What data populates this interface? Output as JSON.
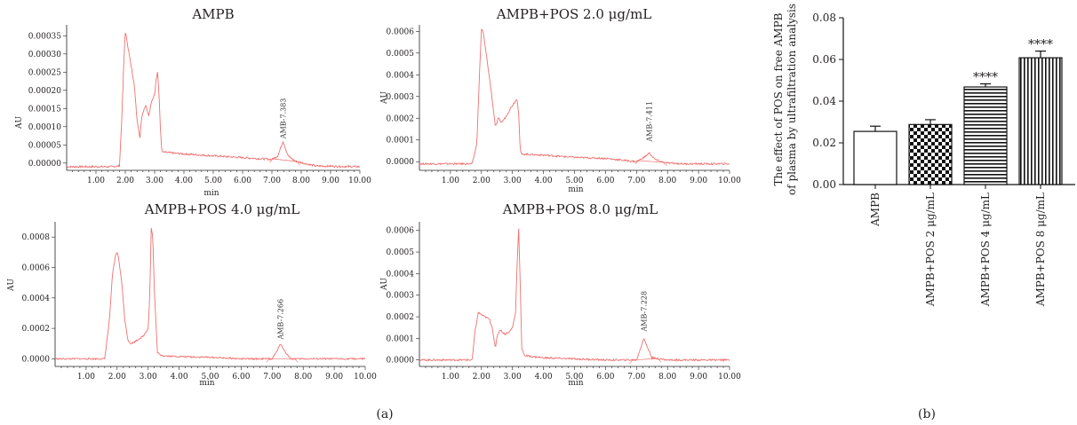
{
  "panel_a_caption": "(a)",
  "panel_b_caption": "(b)",
  "chart_data": [
    {
      "type": "line",
      "title": "AMPB",
      "xlabel": "min",
      "ylabel": "AU",
      "xlim": [
        0,
        10
      ],
      "ylim": [
        -2e-05,
        0.00038
      ],
      "xticks": [
        "1.00",
        "2.00",
        "3.00",
        "4.00",
        "5.00",
        "6.00",
        "7.00",
        "8.00",
        "9.00",
        "10.00"
      ],
      "yticks": [
        "0.00000",
        "0.00005",
        "0.00010",
        "0.00015",
        "0.00020",
        "0.00025",
        "0.00030",
        "0.00035"
      ],
      "ytick_values": [
        0,
        5e-05,
        0.0001,
        0.00015,
        0.0002,
        0.00025,
        0.0003,
        0.00035
      ],
      "peak_label": "AMB-7.383",
      "peak_label_x": 7.383,
      "peak_label_y": 6e-05,
      "baseline_noise": 2.5e-06,
      "series": [
        {
          "x": [
            0,
            1.5,
            1.8,
            1.88,
            1.95,
            2.0,
            2.05,
            2.15,
            2.3,
            2.4,
            2.5,
            2.55,
            2.6,
            2.7,
            2.8,
            2.9,
            3.0,
            3.05,
            3.1,
            3.15,
            3.2,
            3.25,
            3.3,
            4.0,
            5.0,
            6.0,
            7.0,
            7.2,
            7.38,
            7.55,
            7.8,
            8.5,
            10.0
          ],
          "y": [
            -1e-05,
            -1e-05,
            -8e-06,
            0.00012,
            0.00028,
            0.00036,
            0.00034,
            0.00029,
            0.00022,
            0.00012,
            7e-05,
            0.00012,
            0.00014,
            0.00016,
            0.00013,
            0.00017,
            0.00019,
            0.00023,
            0.00025,
            0.00019,
            9e-05,
            3e-05,
            3e-05,
            2.5e-05,
            2e-05,
            1.5e-05,
            1e-05,
            2e-05,
            6e-05,
            2e-05,
            5e-06,
            -8e-06,
            -1e-05
          ]
        }
      ]
    },
    {
      "type": "line",
      "title": "AMPB+POS 2.0 μg/mL",
      "xlabel": "min",
      "ylabel": "AU",
      "xlim": [
        0,
        10
      ],
      "ylim": [
        -4e-05,
        0.00063
      ],
      "xticks": [
        "1.00",
        "2.00",
        "3.00",
        "4.00",
        "5.00",
        "6.00",
        "7.00",
        "8.00",
        "9.00",
        "10.00"
      ],
      "yticks": [
        "0.0000",
        "0.0001",
        "0.0002",
        "0.0003",
        "0.0004",
        "0.0005",
        "0.0006"
      ],
      "ytick_values": [
        0,
        0.0001,
        0.0002,
        0.0003,
        0.0004,
        0.0005,
        0.0006
      ],
      "peak_label": "AMB-7.411",
      "peak_label_x": 7.411,
      "peak_label_y": 8e-05,
      "baseline_noise": 4e-06,
      "series": [
        {
          "x": [
            0,
            1.7,
            1.85,
            1.95,
            2.0,
            2.05,
            2.15,
            2.3,
            2.45,
            2.55,
            2.65,
            2.8,
            2.95,
            3.05,
            3.15,
            3.2,
            3.25,
            3.3,
            4.0,
            5.0,
            6.0,
            7.0,
            7.25,
            7.41,
            7.6,
            7.9,
            8.5,
            10.0
          ],
          "y": [
            -1e-05,
            -1e-05,
            8e-05,
            0.00045,
            0.00061,
            0.0006,
            0.0005,
            0.00034,
            0.00016,
            0.0002,
            0.00018,
            0.00021,
            0.00025,
            0.00027,
            0.00029,
            0.00022,
            5e-05,
            3.5e-05,
            3e-05,
            2e-05,
            1.5e-05,
            0.0,
            2e-05,
            4e-05,
            1e-05,
            -5e-06,
            -1e-05,
            -1e-05
          ]
        }
      ]
    },
    {
      "type": "line",
      "title": "AMPB+POS 4.0 μg/mL",
      "xlabel": "min",
      "ylabel": "AU",
      "xlim": [
        0,
        10
      ],
      "ylim": [
        -5e-05,
        0.0009
      ],
      "xticks": [
        "1.00",
        "2.00",
        "3.00",
        "4.00",
        "5.00",
        "6.00",
        "7.00",
        "8.00",
        "9.00",
        "10.00"
      ],
      "yticks": [
        "0.0000",
        "0.0002",
        "0.0004",
        "0.0006",
        "0.0008"
      ],
      "ytick_values": [
        0,
        0.0002,
        0.0004,
        0.0006,
        0.0008
      ],
      "peak_label": "AMB-7.266",
      "peak_label_x": 7.266,
      "peak_label_y": 0.00011,
      "baseline_noise": 5e-06,
      "series": [
        {
          "x": [
            0,
            1.6,
            1.75,
            1.85,
            1.95,
            2.0,
            2.05,
            2.15,
            2.25,
            2.35,
            2.45,
            2.55,
            2.7,
            2.85,
            3.0,
            3.05,
            3.1,
            3.15,
            3.2,
            3.3,
            3.35,
            3.5,
            4.0,
            5.0,
            6.0,
            7.0,
            7.15,
            7.27,
            7.4,
            7.6,
            8.0,
            10.0
          ],
          "y": [
            0.0,
            0.0,
            0.00025,
            0.00055,
            0.00068,
            0.0007,
            0.00066,
            0.0005,
            0.00025,
            0.00012,
            0.0001,
            0.00011,
            0.00013,
            0.00015,
            0.0002,
            0.0004,
            0.00086,
            0.0008,
            0.00045,
            4e-05,
            3e-05,
            2e-05,
            1.5e-05,
            1e-05,
            0.0,
            0.0,
            5e-05,
            0.0001,
            5e-05,
            0.0,
            0.0,
            0.0
          ]
        }
      ]
    },
    {
      "type": "line",
      "title": "AMPB+POS 8.0 μg/mL",
      "xlabel": "min",
      "ylabel": "AU",
      "xlim": [
        0,
        10
      ],
      "ylim": [
        -3e-05,
        0.00064
      ],
      "xticks": [
        "1.00",
        "2.00",
        "3.00",
        "4.00",
        "5.00",
        "6.00",
        "7.00",
        "8.00",
        "9.00",
        "10.00"
      ],
      "yticks": [
        "0.0000",
        "0.0001",
        "0.0002",
        "0.0003",
        "0.0004",
        "0.0005",
        "0.0006"
      ],
      "ytick_values": [
        0,
        0.0001,
        0.0002,
        0.0003,
        0.0004,
        0.0005,
        0.0006
      ],
      "peak_label": "AMB-7.228",
      "peak_label_x": 7.228,
      "peak_label_y": 0.00012,
      "baseline_noise": 4e-06,
      "series": [
        {
          "x": [
            0,
            1.7,
            1.8,
            1.9,
            2.0,
            2.1,
            2.25,
            2.35,
            2.45,
            2.5,
            2.6,
            2.75,
            2.9,
            3.0,
            3.1,
            3.15,
            3.2,
            3.25,
            3.3,
            3.4,
            4.0,
            5.0,
            6.0,
            7.0,
            7.12,
            7.23,
            7.35,
            7.5,
            8.0,
            10.0
          ],
          "y": [
            0.0,
            0.0,
            0.00014,
            0.00022,
            0.00021,
            0.0002,
            0.00019,
            0.00015,
            5e-05,
            0.00011,
            0.00014,
            0.00012,
            0.00013,
            0.00015,
            0.00022,
            0.00045,
            0.00061,
            0.00035,
            5e-05,
            2e-05,
            1e-05,
            5e-06,
            0.0,
            0.0,
            5e-05,
            0.0001,
            6e-05,
            1e-05,
            0.0,
            0.0
          ]
        }
      ]
    },
    {
      "type": "bar",
      "ylabel": "The effect of POS on free AMPB of plasma by ultrafiltration analysis",
      "ylim": [
        0,
        0.08
      ],
      "yticks": [
        "0.00",
        "0.02",
        "0.04",
        "0.06",
        "0.08"
      ],
      "ytick_values": [
        0,
        0.02,
        0.04,
        0.06,
        0.08
      ],
      "categories": [
        "AMPB",
        "AMPB+POS 2 μg/mL",
        "AMPB+POS 4 μg/mL",
        "AMPB+POS 8 μg/mL"
      ],
      "values": [
        0.0255,
        0.0288,
        0.0468,
        0.0608
      ],
      "errors": [
        0.0025,
        0.0023,
        0.0015,
        0.0032
      ],
      "fills": [
        "none",
        "checkerboard",
        "horizontal-stripes",
        "vertical-stripes"
      ],
      "annotations": [
        "",
        "",
        "****",
        "****"
      ]
    }
  ]
}
